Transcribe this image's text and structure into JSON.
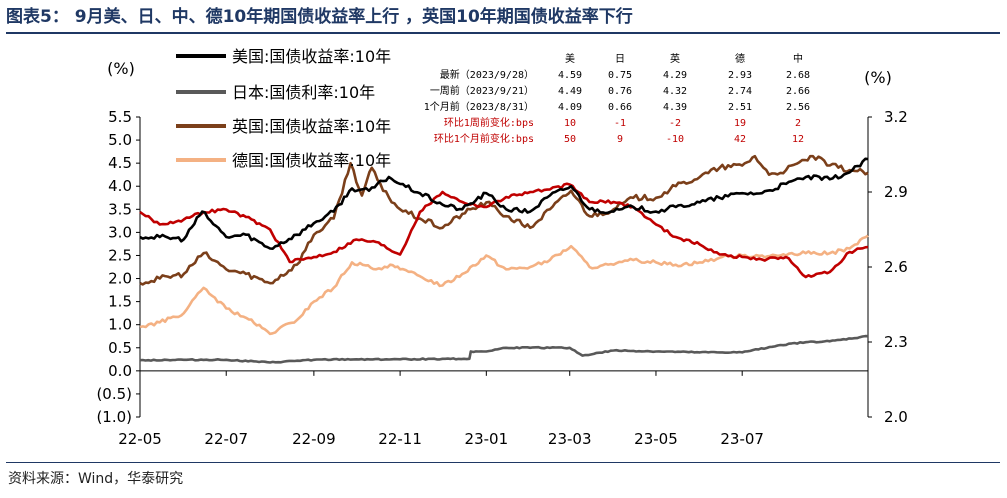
{
  "title": "图表5： 9月美、日、中、德10年期国债收益率上行 ，英国10年期国债收益率下行",
  "source": "资料来源：Wind，华泰研究",
  "chart_data": {
    "type": "line",
    "x_ticks": [
      "22-05",
      "22-07",
      "22-09",
      "22-11",
      "23-01",
      "23-03",
      "23-05",
      "23-07"
    ],
    "x_range": [
      "2022-05-01",
      "2023-09-28"
    ],
    "left_axis": {
      "label": "(%)",
      "ylim": [
        -1.0,
        5.5
      ],
      "tick_labels": [
        "5.5",
        "5.0",
        "4.5",
        "4.0",
        "3.5",
        "3.0",
        "2.5",
        "2.0",
        "1.5",
        "1.0",
        "0.5",
        "0.0",
        "(0.5)",
        "(1.0)"
      ]
    },
    "right_axis": {
      "label": "(%)",
      "ylim": [
        2.0,
        3.2
      ],
      "tick_labels": [
        "3.2",
        "2.9",
        "2.6",
        "2.3",
        "2.0"
      ],
      "series_on_axis": "中"
    },
    "legend": [
      "美国:国债收益率:10年",
      "日本:国债利率:10年",
      "英国:国债收益率:10年",
      "德国:国债收益率:10年"
    ],
    "colors": {
      "us": "#000000",
      "jp": "#595959",
      "uk": "#7b3f1a",
      "de": "#f4b183",
      "cn": "#c00000"
    },
    "series": [
      {
        "key": "us",
        "name": "美国:国债收益率:10年",
        "axis": "left",
        "points": [
          [
            "2022-05-01",
            2.9
          ],
          [
            "2022-05-15",
            2.9
          ],
          [
            "2022-06-01",
            2.85
          ],
          [
            "2022-06-14",
            3.45
          ],
          [
            "2022-06-20",
            3.25
          ],
          [
            "2022-07-01",
            2.9
          ],
          [
            "2022-07-15",
            2.95
          ],
          [
            "2022-08-01",
            2.65
          ],
          [
            "2022-08-20",
            2.95
          ],
          [
            "2022-09-01",
            3.2
          ],
          [
            "2022-09-15",
            3.45
          ],
          [
            "2022-09-28",
            3.95
          ],
          [
            "2022-10-10",
            3.9
          ],
          [
            "2022-10-24",
            4.2
          ],
          [
            "2022-11-01",
            4.05
          ],
          [
            "2022-11-15",
            3.85
          ],
          [
            "2022-12-01",
            3.6
          ],
          [
            "2022-12-15",
            3.5
          ],
          [
            "2023-01-01",
            3.85
          ],
          [
            "2023-01-15",
            3.5
          ],
          [
            "2023-02-01",
            3.45
          ],
          [
            "2023-02-15",
            3.8
          ],
          [
            "2023-03-02",
            4.0
          ],
          [
            "2023-03-15",
            3.5
          ],
          [
            "2023-04-01",
            3.45
          ],
          [
            "2023-04-15",
            3.55
          ],
          [
            "2023-05-01",
            3.45
          ],
          [
            "2023-05-15",
            3.55
          ],
          [
            "2023-06-01",
            3.65
          ],
          [
            "2023-06-15",
            3.75
          ],
          [
            "2023-07-01",
            3.85
          ],
          [
            "2023-07-15",
            3.85
          ],
          [
            "2023-08-01",
            4.05
          ],
          [
            "2023-08-15",
            4.2
          ],
          [
            "2023-09-01",
            4.15
          ],
          [
            "2023-09-15",
            4.3
          ],
          [
            "2023-09-28",
            4.59
          ]
        ]
      },
      {
        "key": "jp",
        "name": "日本:国债利率:10年",
        "axis": "left",
        "points": [
          [
            "2022-05-01",
            0.23
          ],
          [
            "2022-06-01",
            0.24
          ],
          [
            "2022-07-01",
            0.24
          ],
          [
            "2022-08-01",
            0.18
          ],
          [
            "2022-09-01",
            0.24
          ],
          [
            "2022-10-01",
            0.25
          ],
          [
            "2022-11-01",
            0.25
          ],
          [
            "2022-12-01",
            0.26
          ],
          [
            "2022-12-20",
            0.26
          ],
          [
            "2022-12-21",
            0.42
          ],
          [
            "2023-01-01",
            0.42
          ],
          [
            "2023-01-15",
            0.5
          ],
          [
            "2023-02-01",
            0.5
          ],
          [
            "2023-03-01",
            0.5
          ],
          [
            "2023-03-10",
            0.33
          ],
          [
            "2023-04-01",
            0.44
          ],
          [
            "2023-05-01",
            0.42
          ],
          [
            "2023-06-01",
            0.4
          ],
          [
            "2023-07-01",
            0.4
          ],
          [
            "2023-07-28",
            0.56
          ],
          [
            "2023-08-15",
            0.62
          ],
          [
            "2023-09-01",
            0.64
          ],
          [
            "2023-09-28",
            0.75
          ]
        ]
      },
      {
        "key": "uk",
        "name": "英国:国债收益率:10年",
        "axis": "left",
        "points": [
          [
            "2022-05-01",
            1.9
          ],
          [
            "2022-05-15",
            2.0
          ],
          [
            "2022-06-01",
            2.1
          ],
          [
            "2022-06-15",
            2.55
          ],
          [
            "2022-07-01",
            2.2
          ],
          [
            "2022-07-15",
            2.1
          ],
          [
            "2022-08-01",
            1.9
          ],
          [
            "2022-08-20",
            2.3
          ],
          [
            "2022-09-01",
            2.95
          ],
          [
            "2022-09-15",
            3.3
          ],
          [
            "2022-09-27",
            4.5
          ],
          [
            "2022-10-05",
            3.8
          ],
          [
            "2022-10-12",
            4.4
          ],
          [
            "2022-10-20",
            3.9
          ],
          [
            "2022-11-01",
            3.5
          ],
          [
            "2022-11-15",
            3.3
          ],
          [
            "2022-12-01",
            3.1
          ],
          [
            "2022-12-15",
            3.4
          ],
          [
            "2023-01-01",
            3.65
          ],
          [
            "2023-01-15",
            3.35
          ],
          [
            "2023-02-01",
            3.1
          ],
          [
            "2023-02-15",
            3.5
          ],
          [
            "2023-03-02",
            3.9
          ],
          [
            "2023-03-15",
            3.35
          ],
          [
            "2023-04-01",
            3.5
          ],
          [
            "2023-04-15",
            3.75
          ],
          [
            "2023-05-01",
            3.75
          ],
          [
            "2023-05-15",
            4.0
          ],
          [
            "2023-06-01",
            4.2
          ],
          [
            "2023-06-15",
            4.4
          ],
          [
            "2023-07-01",
            4.45
          ],
          [
            "2023-07-10",
            4.65
          ],
          [
            "2023-07-20",
            4.25
          ],
          [
            "2023-08-01",
            4.35
          ],
          [
            "2023-08-20",
            4.65
          ],
          [
            "2023-09-01",
            4.45
          ],
          [
            "2023-09-15",
            4.35
          ],
          [
            "2023-09-28",
            4.29
          ]
        ]
      },
      {
        "key": "de",
        "name": "德国:国债收益率:10年",
        "axis": "left",
        "points": [
          [
            "2022-05-01",
            0.95
          ],
          [
            "2022-05-15",
            1.05
          ],
          [
            "2022-06-01",
            1.25
          ],
          [
            "2022-06-15",
            1.8
          ],
          [
            "2022-07-01",
            1.35
          ],
          [
            "2022-07-15",
            1.15
          ],
          [
            "2022-08-01",
            0.8
          ],
          [
            "2022-08-20",
            1.1
          ],
          [
            "2022-09-01",
            1.5
          ],
          [
            "2022-09-15",
            1.8
          ],
          [
            "2022-09-28",
            2.35
          ],
          [
            "2022-10-15",
            2.2
          ],
          [
            "2022-10-25",
            2.3
          ],
          [
            "2022-11-01",
            2.2
          ],
          [
            "2022-11-15",
            2.05
          ],
          [
            "2022-12-01",
            1.85
          ],
          [
            "2022-12-15",
            2.1
          ],
          [
            "2023-01-01",
            2.5
          ],
          [
            "2023-01-15",
            2.2
          ],
          [
            "2023-02-01",
            2.25
          ],
          [
            "2023-02-15",
            2.4
          ],
          [
            "2023-03-02",
            2.7
          ],
          [
            "2023-03-15",
            2.25
          ],
          [
            "2023-04-01",
            2.3
          ],
          [
            "2023-04-15",
            2.4
          ],
          [
            "2023-05-01",
            2.35
          ],
          [
            "2023-05-15",
            2.3
          ],
          [
            "2023-06-01",
            2.35
          ],
          [
            "2023-06-15",
            2.45
          ],
          [
            "2023-07-01",
            2.5
          ],
          [
            "2023-07-15",
            2.5
          ],
          [
            "2023-08-01",
            2.5
          ],
          [
            "2023-08-15",
            2.55
          ],
          [
            "2023-09-01",
            2.55
          ],
          [
            "2023-09-15",
            2.65
          ],
          [
            "2023-09-28",
            2.93
          ]
        ]
      },
      {
        "key": "cn",
        "name": "中",
        "axis": "right",
        "points": [
          [
            "2022-05-01",
            2.82
          ],
          [
            "2022-05-15",
            2.77
          ],
          [
            "2022-06-01",
            2.79
          ],
          [
            "2022-06-15",
            2.82
          ],
          [
            "2022-07-01",
            2.83
          ],
          [
            "2022-07-15",
            2.8
          ],
          [
            "2022-08-01",
            2.75
          ],
          [
            "2022-08-15",
            2.62
          ],
          [
            "2022-09-01",
            2.64
          ],
          [
            "2022-09-15",
            2.66
          ],
          [
            "2022-10-01",
            2.71
          ],
          [
            "2022-10-15",
            2.7
          ],
          [
            "2022-11-01",
            2.65
          ],
          [
            "2022-11-15",
            2.82
          ],
          [
            "2022-12-01",
            2.9
          ],
          [
            "2022-12-15",
            2.86
          ],
          [
            "2023-01-01",
            2.84
          ],
          [
            "2023-01-15",
            2.88
          ],
          [
            "2023-02-01",
            2.9
          ],
          [
            "2023-02-15",
            2.91
          ],
          [
            "2023-03-01",
            2.93
          ],
          [
            "2023-03-15",
            2.86
          ],
          [
            "2023-04-01",
            2.86
          ],
          [
            "2023-04-15",
            2.84
          ],
          [
            "2023-05-01",
            2.77
          ],
          [
            "2023-05-15",
            2.72
          ],
          [
            "2023-06-01",
            2.69
          ],
          [
            "2023-06-15",
            2.65
          ],
          [
            "2023-07-01",
            2.64
          ],
          [
            "2023-07-15",
            2.63
          ],
          [
            "2023-08-01",
            2.64
          ],
          [
            "2023-08-15",
            2.56
          ],
          [
            "2023-09-01",
            2.58
          ],
          [
            "2023-09-15",
            2.66
          ],
          [
            "2023-09-28",
            2.68
          ]
        ]
      }
    ],
    "table": {
      "headers": [
        "",
        "美",
        "日",
        "英",
        "德",
        "中"
      ],
      "rows": [
        {
          "label": "最新（2023/9/28）",
          "values": [
            "4.59",
            "0.75",
            "4.29",
            "2.93",
            "2.68"
          ],
          "emphasis": false
        },
        {
          "label": "一周前（2023/9/21）",
          "values": [
            "4.49",
            "0.76",
            "4.32",
            "2.74",
            "2.66"
          ],
          "emphasis": false
        },
        {
          "label": "1个月前（2023/8/31）",
          "values": [
            "4.09",
            "0.66",
            "4.39",
            "2.51",
            "2.56"
          ],
          "emphasis": false
        },
        {
          "label": "环比1周前变化:bps",
          "values": [
            "10",
            "-1",
            "-2",
            "19",
            "2"
          ],
          "emphasis": true
        },
        {
          "label": "环比1个月前变化:bps",
          "values": [
            "50",
            "9",
            "-10",
            "42",
            "12"
          ],
          "emphasis": true
        }
      ],
      "emphasis_color": "#c00000"
    }
  }
}
